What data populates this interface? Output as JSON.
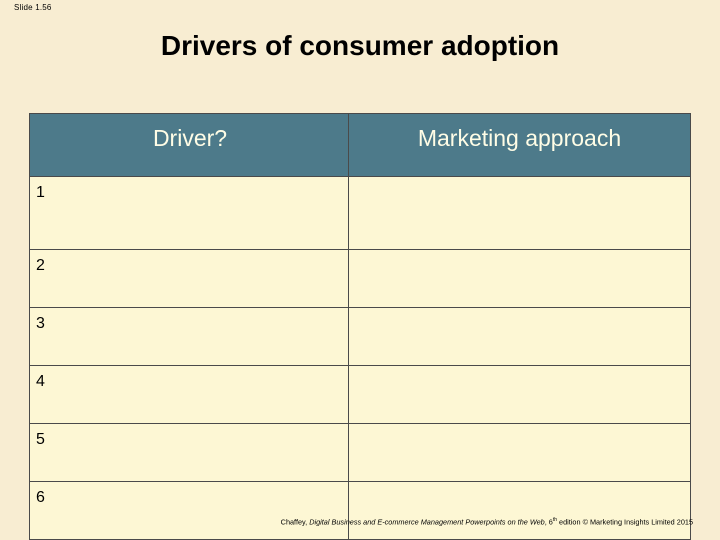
{
  "slide_label": "Slide 1.56",
  "title": "Drivers of consumer adoption",
  "table": {
    "headers": [
      "Driver?",
      "Marketing approach"
    ],
    "rows": [
      {
        "number": "1",
        "driver": "",
        "marketing": ""
      },
      {
        "number": "2",
        "driver": "",
        "marketing": ""
      },
      {
        "number": "3",
        "driver": "",
        "marketing": ""
      },
      {
        "number": "4",
        "driver": "",
        "marketing": ""
      },
      {
        "number": "5",
        "driver": "",
        "marketing": ""
      },
      {
        "number": "6",
        "driver": "",
        "marketing": ""
      }
    ]
  },
  "footer": {
    "author": "Chaffey, ",
    "book_title": "Digital Business and E-commerce Management Powerpoints on the Web",
    "edition_prefix": ", 6",
    "edition_suffix": "th",
    "rest": " edition © Marketing Insights Limited 2015"
  },
  "colors": {
    "background": "#f8edd2",
    "header_fill": "#4d7a8a",
    "header_text": "#fffde6",
    "cell_fill": "#fdf7d4",
    "border": "#4a4a4a"
  }
}
